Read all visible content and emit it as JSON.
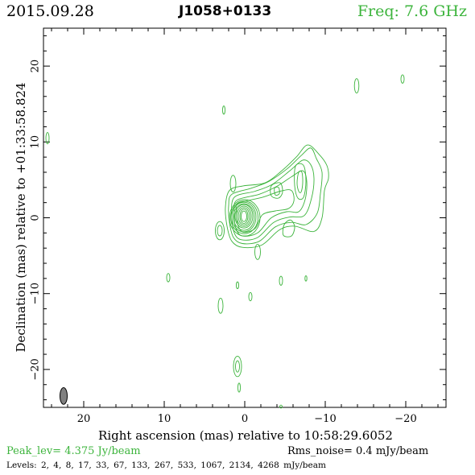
{
  "header": {
    "date": "2015.09.28",
    "source": "J1058+0133",
    "frequency": "Freq: 7.6 GHz"
  },
  "footer": {
    "peak": "Peak_lev=  4.375 Jy/beam",
    "rms": "Rms_noise=  0.4 mJy/beam",
    "levels": "Levels:  2,  4,  8,  17,  33,  67,  133,  267,  533,  1067,  2134,  4268 mJy/beam"
  },
  "colors": {
    "contour": "#3cb43c",
    "beam": "#808080",
    "frame": "#000000"
  },
  "chart_data": {
    "type": "contour",
    "xlabel": "Right ascension (mas) relative to 10:58:29.6052",
    "ylabel": "Declination (mas) relative to +01:33:58.824",
    "xlim": [
      25,
      -25
    ],
    "ylim": [
      -25,
      25
    ],
    "x_ticks": [
      20,
      10,
      0,
      -10,
      -20
    ],
    "x_tick_labels": [
      "20",
      "10",
      "0",
      "−10",
      "−20"
    ],
    "y_ticks": [
      20,
      10,
      0,
      -10,
      -20
    ],
    "y_tick_labels": [
      "20",
      "10",
      "0",
      "−10",
      "−20"
    ],
    "grid": false,
    "beam": {
      "x": 22.5,
      "y": -23.5,
      "major_mas": 2.2,
      "minor_mas": 0.9,
      "pa_deg": 0
    },
    "core_contours": [
      {
        "x": 0.0,
        "y": 0.0,
        "rx": 1.9,
        "ry": 2.4
      },
      {
        "x": 0.05,
        "y": 0.05,
        "rx": 1.7,
        "ry": 2.15
      },
      {
        "x": 0.1,
        "y": 0.1,
        "rx": 1.5,
        "ry": 1.95
      },
      {
        "x": 0.1,
        "y": 0.1,
        "rx": 1.3,
        "ry": 1.75
      },
      {
        "x": 0.1,
        "y": 0.2,
        "rx": 1.1,
        "ry": 1.55
      },
      {
        "x": 0.1,
        "y": 0.2,
        "rx": 0.9,
        "ry": 1.35
      },
      {
        "x": 0.1,
        "y": 0.2,
        "rx": 0.7,
        "ry": 1.15
      },
      {
        "x": 0.1,
        "y": 0.2,
        "rx": 0.5,
        "ry": 0.95
      },
      {
        "x": 0.1,
        "y": 0.2,
        "rx": 0.35,
        "ry": 0.7
      }
    ],
    "jet_contours": [
      [
        [
          1.9,
          3.6
        ],
        [
          0.2,
          4.2
        ],
        [
          -2.5,
          4.6
        ],
        [
          -4.6,
          6.2
        ],
        [
          -6.4,
          8.0
        ],
        [
          -7.8,
          9.6
        ],
        [
          -9.2,
          8.4
        ],
        [
          -10.2,
          6.9
        ],
        [
          -10.4,
          5.2
        ],
        [
          -9.9,
          3.6
        ],
        [
          -9.6,
          0.0
        ],
        [
          -8.6,
          -1.8
        ],
        [
          -6.2,
          -1.1
        ],
        [
          -4.3,
          -1.6
        ],
        [
          -2.1,
          -3.6
        ],
        [
          0.3,
          -3.9
        ],
        [
          1.6,
          -3.1
        ],
        [
          2.2,
          -1.1
        ],
        [
          2.4,
          1.4
        ]
      ],
      [
        [
          1.6,
          3.1
        ],
        [
          -0.8,
          3.9
        ],
        [
          -3.0,
          4.8
        ],
        [
          -5.2,
          6.4
        ],
        [
          -7.0,
          8.2
        ],
        [
          -8.2,
          9.2
        ],
        [
          -8.9,
          7.8
        ],
        [
          -9.6,
          6.0
        ],
        [
          -9.4,
          3.2
        ],
        [
          -9.0,
          0.6
        ],
        [
          -7.6,
          -0.9
        ],
        [
          -5.8,
          -0.6
        ],
        [
          -3.8,
          -1.2
        ],
        [
          -1.8,
          -3.1
        ],
        [
          0.3,
          -3.4
        ],
        [
          1.4,
          -2.6
        ],
        [
          1.9,
          -0.6
        ],
        [
          2.0,
          1.6
        ]
      ],
      [
        [
          1.3,
          2.7
        ],
        [
          -1.3,
          3.5
        ],
        [
          -3.4,
          4.4
        ],
        [
          -5.6,
          6.2
        ],
        [
          -7.2,
          7.6
        ],
        [
          -8.2,
          7.0
        ],
        [
          -8.6,
          5.2
        ],
        [
          -8.3,
          2.6
        ],
        [
          -7.4,
          0.3
        ],
        [
          -5.6,
          0.1
        ],
        [
          -3.6,
          -0.6
        ],
        [
          -1.6,
          -2.6
        ],
        [
          0.4,
          -2.9
        ],
        [
          1.3,
          -2.0
        ],
        [
          1.6,
          0.2
        ]
      ],
      [
        [
          1.0,
          2.3
        ],
        [
          -1.8,
          3.1
        ],
        [
          -3.9,
          4.1
        ],
        [
          -5.8,
          5.4
        ],
        [
          -7.2,
          6.2
        ],
        [
          -7.7,
          4.8
        ],
        [
          -7.5,
          2.4
        ],
        [
          -6.7,
          0.8
        ],
        [
          -5.2,
          0.8
        ],
        [
          -3.3,
          0.0
        ],
        [
          -1.6,
          -2.0
        ],
        [
          0.3,
          -2.4
        ],
        [
          1.1,
          -1.4
        ],
        [
          1.3,
          0.6
        ]
      ],
      [
        [
          0.8,
          1.9
        ],
        [
          -2.2,
          2.7
        ],
        [
          -4.4,
          3.5
        ],
        [
          -5.8,
          3.6
        ],
        [
          -6.1,
          2.2
        ],
        [
          -5.4,
          1.2
        ],
        [
          -3.8,
          0.9
        ],
        [
          -2.2,
          0.4
        ],
        [
          -1.3,
          -1.4
        ],
        [
          0.2,
          -1.9
        ],
        [
          0.9,
          -0.8
        ],
        [
          1.0,
          0.8
        ]
      ],
      [
        [
          -6.3,
          6.8
        ],
        [
          -7.3,
          6.9
        ],
        [
          -7.6,
          4.8
        ],
        [
          -7.3,
          2.7
        ],
        [
          -6.6,
          2.6
        ],
        [
          -6.2,
          4.2
        ]
      ],
      [
        [
          -6.7,
          6.0
        ],
        [
          -7.1,
          6.0
        ],
        [
          -7.2,
          4.6
        ],
        [
          -7.0,
          3.4
        ],
        [
          -6.7,
          3.5
        ],
        [
          -6.5,
          4.6
        ]
      ],
      [
        [
          -3.3,
          4.2
        ],
        [
          -4.4,
          4.6
        ],
        [
          -4.7,
          3.4
        ],
        [
          -4.2,
          2.6
        ],
        [
          -3.3,
          2.9
        ]
      ],
      [
        [
          -3.7,
          3.9
        ],
        [
          -4.2,
          4.0
        ],
        [
          -4.3,
          3.2
        ],
        [
          -3.8,
          3.0
        ]
      ],
      [
        [
          -4.8,
          -2.3
        ],
        [
          -5.8,
          -2.4
        ],
        [
          -6.2,
          -1.2
        ],
        [
          -5.7,
          -0.3
        ],
        [
          -4.9,
          -0.9
        ]
      ]
    ],
    "islands": [
      {
        "x": -13.9,
        "y": 17.4,
        "rx": 0.28,
        "ry": 0.95
      },
      {
        "x": -19.6,
        "y": 18.3,
        "rx": 0.2,
        "ry": 0.55
      },
      {
        "x": 2.6,
        "y": 14.2,
        "rx": 0.15,
        "ry": 0.55
      },
      {
        "x": 24.5,
        "y": 10.5,
        "rx": 0.2,
        "ry": 0.75
      },
      {
        "x": 1.45,
        "y": 4.5,
        "rx": 0.35,
        "ry": 1.1
      },
      {
        "x": 3.1,
        "y": -1.7,
        "rx": 0.55,
        "ry": 1.2
      },
      {
        "x": 3.1,
        "y": -1.7,
        "rx": 0.3,
        "ry": 0.7
      },
      {
        "x": -1.6,
        "y": -4.5,
        "rx": 0.35,
        "ry": 1.0
      },
      {
        "x": 9.5,
        "y": -7.9,
        "rx": 0.2,
        "ry": 0.55
      },
      {
        "x": 0.9,
        "y": -8.9,
        "rx": 0.15,
        "ry": 0.45
      },
      {
        "x": -0.7,
        "y": -10.4,
        "rx": 0.2,
        "ry": 0.55
      },
      {
        "x": -4.5,
        "y": -8.3,
        "rx": 0.2,
        "ry": 0.6
      },
      {
        "x": -7.6,
        "y": -8.0,
        "rx": 0.12,
        "ry": 0.35
      },
      {
        "x": 3.0,
        "y": -11.6,
        "rx": 0.3,
        "ry": 1.0
      },
      {
        "x": 0.9,
        "y": -19.6,
        "rx": 0.5,
        "ry": 1.35
      },
      {
        "x": 0.9,
        "y": -19.6,
        "rx": 0.25,
        "ry": 0.75
      },
      {
        "x": 0.7,
        "y": -22.4,
        "rx": 0.15,
        "ry": 0.6
      },
      {
        "x": -4.5,
        "y": -24.9,
        "rx": 0.15,
        "ry": 0.2
      }
    ]
  }
}
